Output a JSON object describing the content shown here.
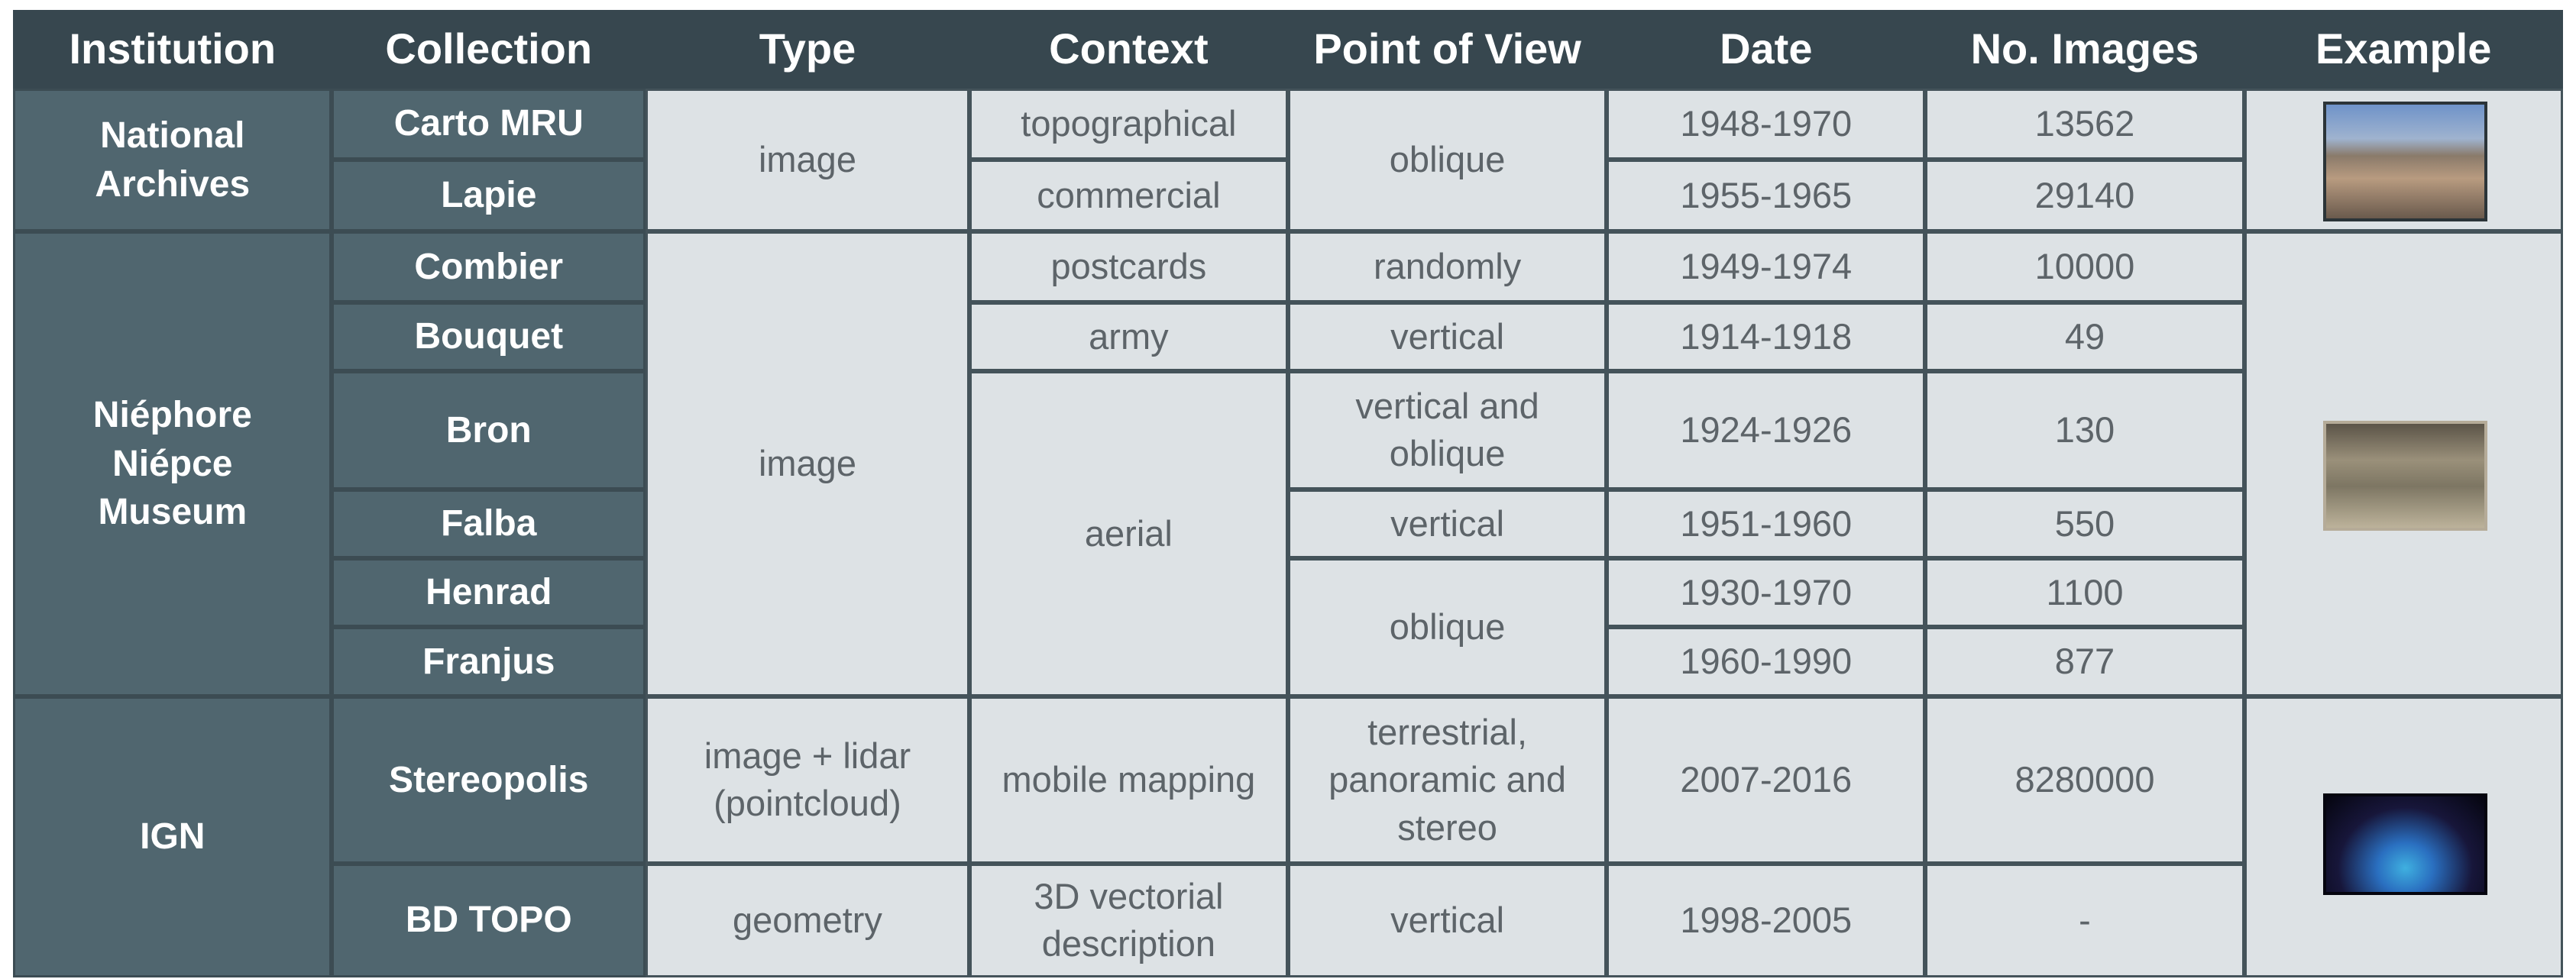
{
  "table": {
    "header": [
      "Institution",
      "Collection",
      "Type",
      "Context",
      "Point of View",
      "Date",
      "No. Images",
      "Example"
    ],
    "rows": [
      [
        "National\nArchives",
        "Carto MRU",
        "image",
        "topographical",
        "oblique",
        "1948-1970",
        "13562"
      ],
      [
        null,
        "Lapie",
        null,
        "commercial",
        null,
        "1955-1965",
        "29140"
      ],
      [
        "Niéphore\nNiépce\nMuseum",
        "Combier",
        "image",
        "postcards",
        "randomly",
        "1949-1974",
        "10000"
      ],
      [
        null,
        "Bouquet",
        null,
        "army",
        "vertical",
        "1914-1918",
        "49"
      ],
      [
        null,
        "Bron",
        null,
        "aerial",
        "vertical and\noblique",
        "1924-1926",
        "130"
      ],
      [
        null,
        "Falba",
        null,
        null,
        "vertical",
        "1951-1960",
        "550"
      ],
      [
        null,
        "Henrad",
        null,
        null,
        "oblique",
        "1930-1970",
        "1100"
      ],
      [
        null,
        "Franjus",
        null,
        null,
        null,
        "1960-1990",
        "877"
      ],
      [
        "IGN",
        "Stereopolis",
        "image + lidar\n(pointcloud)",
        "mobile mapping",
        "terrestrial,\npanoramic and\nstereo",
        "2007-2016",
        "8280000"
      ],
      [
        null,
        "BD TOPO",
        "geometry",
        "3D vectorial\ndescription",
        "vertical",
        "1998-2005",
        "-"
      ]
    ]
  }
}
